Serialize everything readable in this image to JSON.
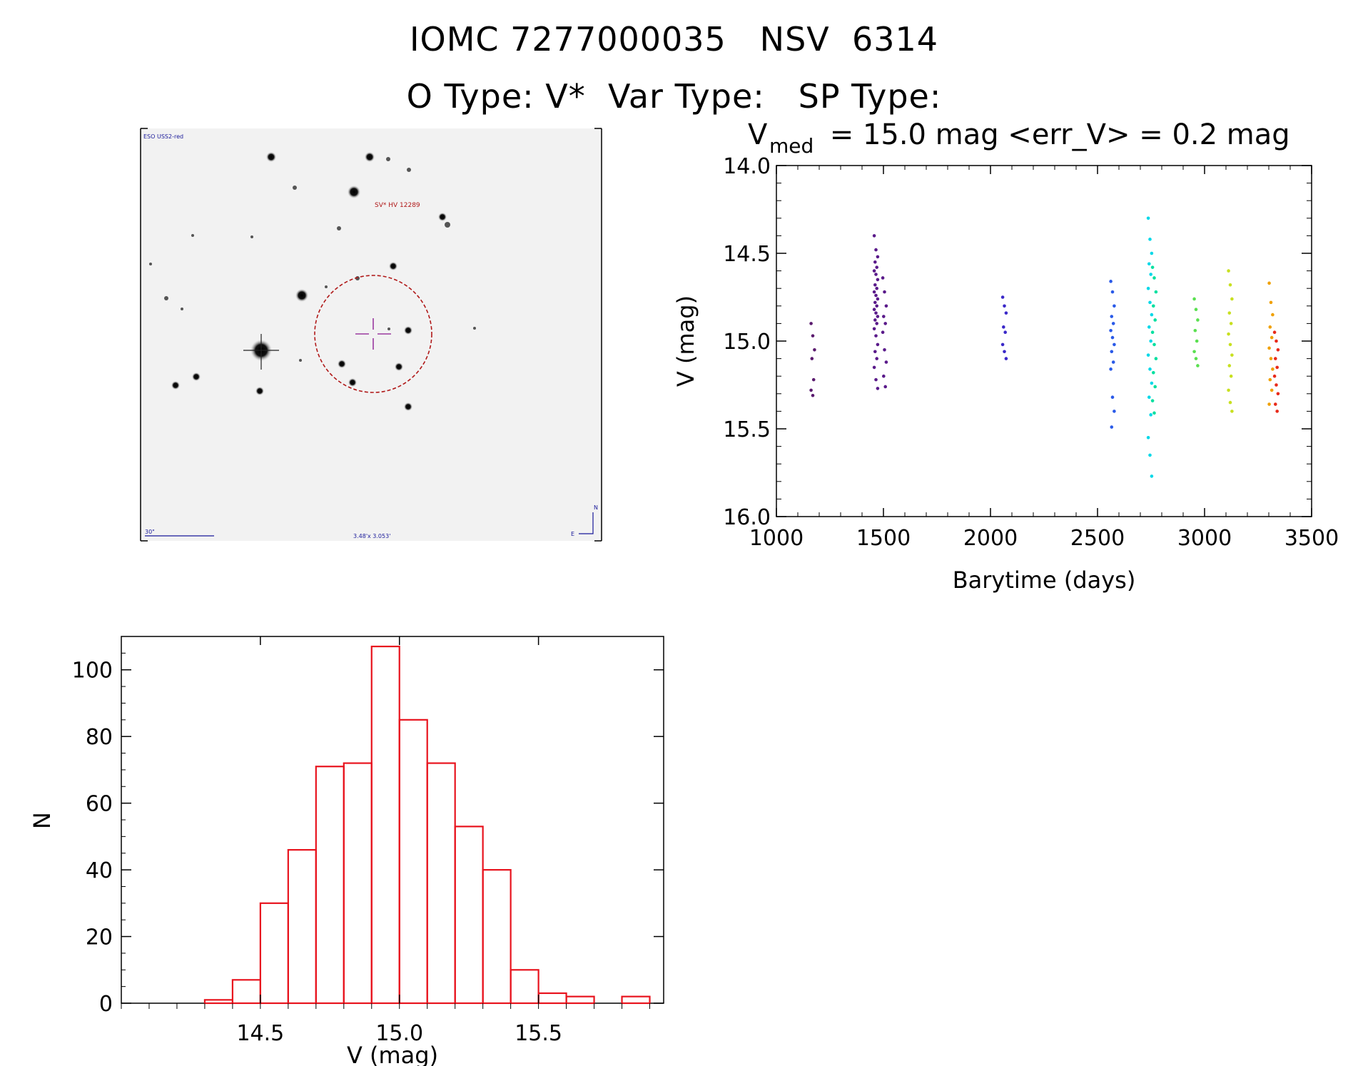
{
  "header": {
    "line1": "IOMC 7277000035   NSV  6314",
    "line2": "O Type: V*  Var Type:   SP Type:"
  },
  "image_panel": {
    "survey_label": "ESO USS2-red",
    "object_label": "SV* HV 12289",
    "scale_label": "30\"",
    "fov_label": "3.48'x 3.053'",
    "north_label": "N",
    "east_label": "E"
  },
  "chart_data": [
    {
      "type": "scatter",
      "title_prefix": "V",
      "title_subscript": "med",
      "title_suffix": " = 15.0 mag <err_V> = 0.2 mag",
      "xlabel": "Barytime (days)",
      "ylabel": "V (mag)",
      "xlim": [
        1000,
        3500
      ],
      "ylim": [
        16.0,
        14.0
      ],
      "y_inverted": true,
      "x_ticks": [
        "1000",
        "1500",
        "2000",
        "2500",
        "3000",
        "3500"
      ],
      "y_ticks": [
        "14.0",
        "14.5",
        "15.0",
        "15.5",
        "16.0"
      ],
      "color_by_x": "rainbow",
      "groups": [
        {
          "x": 1170,
          "color": "#5a1a6e",
          "values": [
            14.9,
            14.97,
            15.05,
            15.1,
            15.22,
            15.28,
            15.31
          ]
        },
        {
          "x": 1465,
          "color": "#5a1a8a",
          "values": [
            14.4,
            14.48,
            14.52,
            14.55,
            14.58,
            14.6,
            14.62,
            14.65,
            14.68,
            14.7,
            14.72,
            14.74,
            14.76,
            14.78,
            14.8,
            14.82,
            14.84,
            14.86,
            14.88,
            14.9,
            14.93,
            14.97,
            15.02,
            15.06,
            15.1,
            15.15,
            15.22,
            15.27
          ]
        },
        {
          "x": 1505,
          "color": "#5a1a8a",
          "values": [
            14.64,
            14.72,
            14.8,
            14.86,
            14.9,
            14.95,
            15.05,
            15.12,
            15.2,
            15.26
          ]
        },
        {
          "x": 2065,
          "color": "#3a28c8",
          "values": [
            14.75,
            14.8,
            14.84,
            14.92,
            14.95,
            15.02,
            15.06,
            15.1
          ]
        },
        {
          "x": 2570,
          "color": "#2a5ae8",
          "values": [
            14.66,
            14.72,
            14.8,
            14.86,
            14.9,
            14.94,
            14.98,
            15.02,
            15.06,
            15.12,
            15.16,
            15.32,
            15.4,
            15.49
          ]
        },
        {
          "x": 2745,
          "color": "#00d8e8",
          "values": [
            14.3,
            14.42,
            14.5,
            14.56,
            14.62,
            14.7,
            14.78,
            14.85,
            14.92,
            15.0,
            15.08,
            15.16,
            15.24,
            15.32,
            15.42,
            15.55,
            15.65,
            15.77
          ]
        },
        {
          "x": 2765,
          "color": "#00e0a0",
          "values": [
            14.58,
            14.64,
            14.72,
            14.8,
            14.88,
            14.95,
            15.02,
            15.1,
            15.18,
            15.26,
            15.34,
            15.41
          ]
        },
        {
          "x": 2960,
          "color": "#5ae050",
          "values": [
            14.76,
            14.82,
            14.88,
            14.94,
            15.0,
            15.06,
            15.1,
            15.14
          ]
        },
        {
          "x": 3120,
          "color": "#c8e020",
          "values": [
            14.6,
            14.68,
            14.76,
            14.84,
            14.9,
            14.96,
            15.02,
            15.08,
            15.14,
            15.2,
            15.28,
            15.35,
            15.4
          ]
        },
        {
          "x": 3310,
          "color": "#f0a000",
          "values": [
            14.67,
            14.78,
            14.85,
            14.92,
            14.98,
            15.04,
            15.1,
            15.16,
            15.22,
            15.28,
            15.36
          ]
        },
        {
          "x": 3335,
          "color": "#e82a1a",
          "values": [
            14.95,
            15.0,
            15.05,
            15.1,
            15.15,
            15.2,
            15.25,
            15.3,
            15.36,
            15.4
          ]
        }
      ]
    },
    {
      "type": "bar",
      "histogram": true,
      "xlabel": "V (mag)",
      "ylabel": "N",
      "xlim": [
        14.0,
        15.95
      ],
      "ylim": [
        0,
        110
      ],
      "x_ticks": [
        "14.5",
        "15.0",
        "15.5"
      ],
      "y_ticks": [
        "0",
        "20",
        "40",
        "60",
        "80",
        "100"
      ],
      "bar_color": "#e8141e",
      "bins": [
        {
          "start": 14.3,
          "end": 14.4,
          "count": 1
        },
        {
          "start": 14.4,
          "end": 14.5,
          "count": 7
        },
        {
          "start": 14.5,
          "end": 14.6,
          "count": 30
        },
        {
          "start": 14.6,
          "end": 14.7,
          "count": 46
        },
        {
          "start": 14.7,
          "end": 14.8,
          "count": 71
        },
        {
          "start": 14.8,
          "end": 14.9,
          "count": 72
        },
        {
          "start": 14.9,
          "end": 15.0,
          "count": 107
        },
        {
          "start": 15.0,
          "end": 15.1,
          "count": 85
        },
        {
          "start": 15.1,
          "end": 15.2,
          "count": 72
        },
        {
          "start": 15.2,
          "end": 15.3,
          "count": 53
        },
        {
          "start": 15.3,
          "end": 15.4,
          "count": 40
        },
        {
          "start": 15.4,
          "end": 15.5,
          "count": 10
        },
        {
          "start": 15.5,
          "end": 15.6,
          "count": 3
        },
        {
          "start": 15.6,
          "end": 15.7,
          "count": 2
        },
        {
          "start": 15.8,
          "end": 15.9,
          "count": 2
        }
      ]
    }
  ]
}
